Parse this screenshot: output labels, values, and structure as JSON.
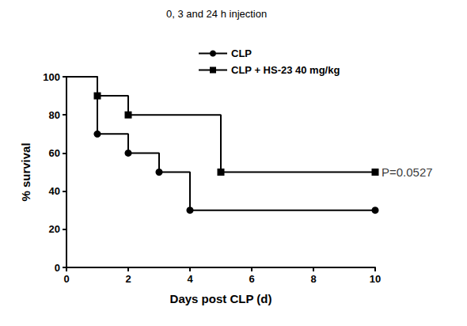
{
  "chart_data": {
    "type": "line",
    "title": "0, 3 and 24 h injection",
    "x_label": "Days post CLP (d)",
    "y_label": "% survival",
    "series": [
      {
        "name": "CLP",
        "color": "#000000",
        "marker": "circle",
        "line_style": "step",
        "x": [
          0,
          1,
          2,
          3,
          4,
          10
        ],
        "values": [
          100,
          70,
          60,
          50,
          30,
          30
        ]
      },
      {
        "name": "CLP + HS-23 40 mg/kg",
        "color": "#000000",
        "marker": "square",
        "line_style": "step",
        "x": [
          0,
          1,
          2,
          5,
          10
        ],
        "values": [
          100,
          90,
          80,
          50,
          50
        ]
      }
    ],
    "annotations": [
      {
        "text": "P=0.0527",
        "x": 10,
        "y": 50
      }
    ],
    "xlim": [
      0,
      10
    ],
    "xticks": [
      0,
      2,
      4,
      6,
      8,
      10
    ],
    "ylim": [
      0,
      100
    ],
    "yticks": [
      0,
      20,
      40,
      60,
      80,
      100
    ],
    "grid": false,
    "legend": "top"
  }
}
